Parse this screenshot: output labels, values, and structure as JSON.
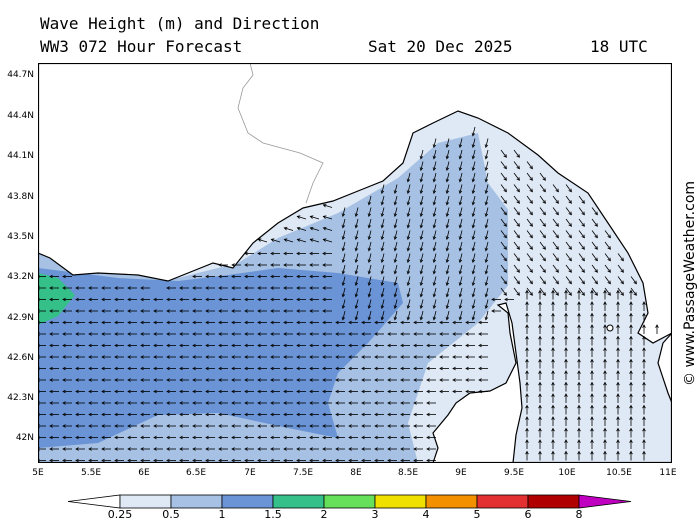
{
  "header": {
    "title": "Wave Height (m) and Direction",
    "model": "WW3 072 Hour Forecast",
    "date": "Sat 20 Dec 2025",
    "time": "18 UTC"
  },
  "axes": {
    "lat_labels": [
      "44.7N",
      "44.4N",
      "44.1N",
      "43.8N",
      "43.5N",
      "43.2N",
      "42.9N",
      "42.6N",
      "42.3N",
      "42N"
    ],
    "lon_labels": [
      "5E",
      "5.5E",
      "6E",
      "6.5E",
      "7E",
      "7.5E",
      "8E",
      "8.5E",
      "9E",
      "9.5E",
      "10E",
      "10.5E",
      "11E"
    ]
  },
  "colorbar": {
    "ticks": [
      "0.25",
      "0.5",
      "1",
      "1.5",
      "2",
      "3",
      "4",
      "5",
      "6",
      "8"
    ],
    "colors": [
      "#dfe8f5",
      "#a6c1e3",
      "#6a94d5",
      "#35c08a",
      "#66e05a",
      "#f0e000",
      "#f39000",
      "#e33030",
      "#b00000",
      "#c000c0"
    ]
  },
  "copyright": "© www.PassageWeather.com",
  "colors": {
    "land": "#ffffff",
    "coast": "#000000",
    "border": "#999999"
  }
}
